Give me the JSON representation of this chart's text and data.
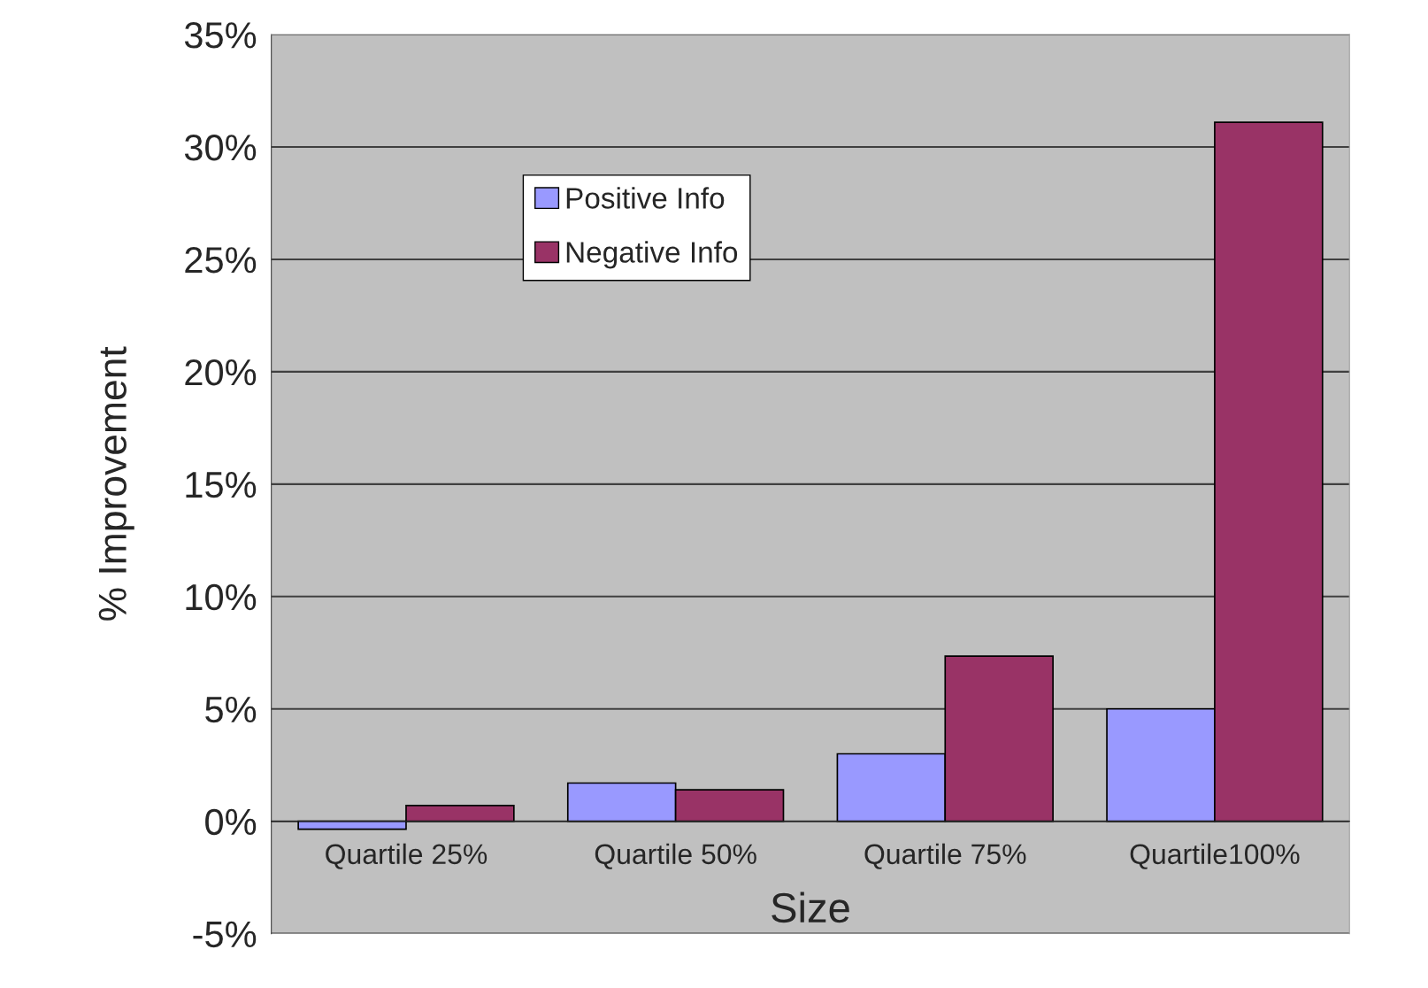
{
  "chart_data": {
    "type": "bar",
    "xlabel": "Size",
    "ylabel": "% Improvement",
    "categories": [
      "Quartile 25%",
      "Quartile 50%",
      "Quartile 75%",
      "Quartile100%"
    ],
    "series": [
      {
        "name": "Positive Info",
        "color": "#9999ff",
        "values": [
          -0.35,
          1.7,
          3.0,
          5.0
        ]
      },
      {
        "name": "Negative Info",
        "color": "#993366",
        "values": [
          0.7,
          1.4,
          7.35,
          31.1
        ]
      }
    ],
    "ylim": [
      -5,
      35
    ],
    "yticks": [
      {
        "value": -5,
        "label": "-5%"
      },
      {
        "value": 0,
        "label": "0%"
      },
      {
        "value": 5,
        "label": "5%"
      },
      {
        "value": 10,
        "label": "10%"
      },
      {
        "value": 15,
        "label": "15%"
      },
      {
        "value": 20,
        "label": "20%"
      },
      {
        "value": 25,
        "label": "25%"
      },
      {
        "value": 30,
        "label": "30%"
      },
      {
        "value": 35,
        "label": "35%"
      }
    ],
    "grid": "y",
    "legend": "top left"
  }
}
